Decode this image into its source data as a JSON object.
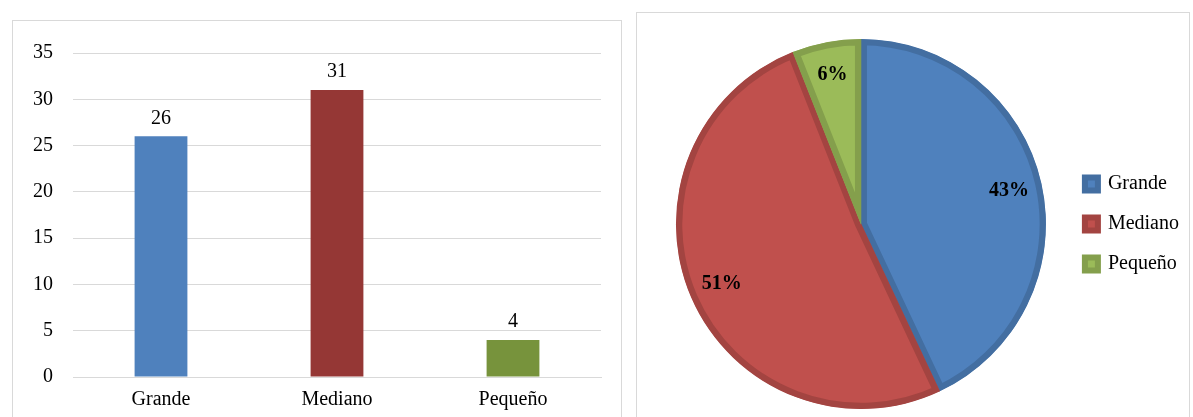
{
  "chart_data": [
    {
      "type": "bar",
      "categories": [
        "Grande",
        "Mediano",
        "Pequeño"
      ],
      "values": [
        26,
        31,
        4
      ],
      "colors": [
        "#4f81bd",
        "#953735",
        "#77933c"
      ],
      "ylim": [
        0,
        35
      ],
      "yticks": [
        0,
        5,
        10,
        15,
        20,
        25,
        30,
        35
      ],
      "grid": "y",
      "data_labels": true,
      "legend": false
    },
    {
      "type": "pie",
      "categories": [
        "Grande",
        "Mediano",
        "Pequeño"
      ],
      "values": [
        43,
        51,
        6
      ],
      "colors": [
        "#4f81bd",
        "#c0504d",
        "#9bbb59"
      ],
      "value_labels": [
        "43%",
        "51%",
        "6%"
      ],
      "legend": "right"
    }
  ]
}
